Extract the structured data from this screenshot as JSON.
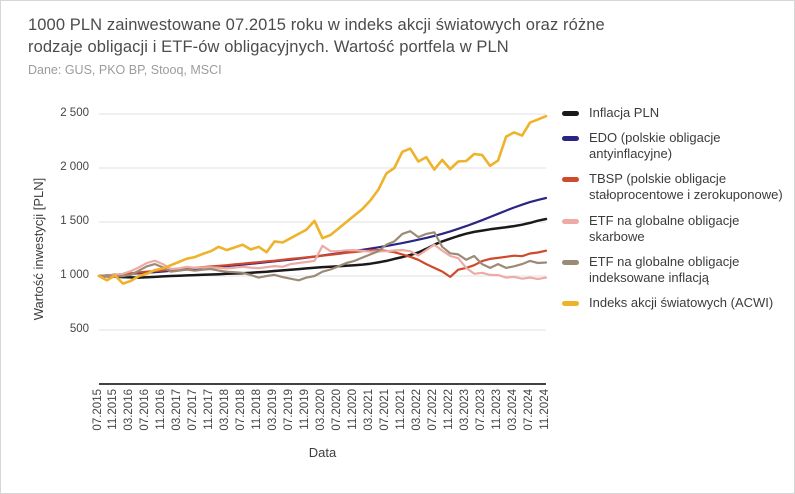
{
  "header": {
    "title_lines": [
      "1000 PLN zainwestowane 07.2015 roku w indeks akcji światowych oraz różne",
      "rodzaje obligacji i ETF-ów obligacyjnych. Wartość portfela w PLN"
    ],
    "source": "Dane: GUS, PKO BP, Stooq, MSCI"
  },
  "chart_data": {
    "type": "line",
    "title": "1000 PLN zainwestowane 07.2015 roku w indeks akcji światowych oraz różne rodzaje obligacji i ETF-ów obligacyjnych. Wartość portfela w PLN",
    "subtitle": "Dane: GUS, PKO BP, Stooq, MSCI",
    "xlabel": "Data",
    "ylabel": "Wartość inwestycji [PLN]",
    "ylim": [
      0,
      2500
    ],
    "ytick_step": 500,
    "ytick_labels": [
      "500",
      "1 000",
      "1 500",
      "2 000",
      "2 500"
    ],
    "grid": "horizontal",
    "legend_position": "right",
    "x_start": "07.2015",
    "x_end": "11.2024",
    "x_sample_interval_months": 2,
    "x_ticks_every_nth_sample": 2,
    "x_tick_labels": [
      "07.2015",
      "11.2015",
      "03.2016",
      "07.2016",
      "11.2016",
      "03.2017",
      "07.2017",
      "11.2017",
      "03.2018",
      "07.2018",
      "11.2018",
      "03.2019",
      "07.2019",
      "11.2019",
      "03.2020",
      "07.2020",
      "11.2020",
      "03.2021",
      "07.2021",
      "11.2021",
      "03.2022",
      "07.2022",
      "11.2022",
      "03.2023",
      "07.2023",
      "11.2023",
      "03.2024",
      "07.2024",
      "11.2024"
    ],
    "series": [
      {
        "name": "Inflacja PLN",
        "color": "#1a1a1a",
        "stroke_width": 2.5,
        "values": [
          1000,
          997,
          994,
          990,
          987,
          985,
          988,
          992,
          996,
          1000,
          1003,
          1006,
          1008,
          1011,
          1014,
          1017,
          1020,
          1023,
          1026,
          1030,
          1035,
          1040,
          1046,
          1052,
          1058,
          1064,
          1070,
          1077,
          1082,
          1086,
          1090,
          1095,
          1100,
          1106,
          1114,
          1126,
          1140,
          1158,
          1175,
          1194,
          1218,
          1252,
          1290,
          1320,
          1345,
          1370,
          1392,
          1408,
          1420,
          1432,
          1443,
          1452,
          1462,
          1475,
          1492,
          1512,
          1528
        ]
      },
      {
        "name": "EDO (polskie obligacje antyinflacyjne)",
        "color": "#2b2583",
        "stroke_width": 2.2,
        "values": [
          1000,
          1005,
          1010,
          1015,
          1020,
          1025,
          1030,
          1036,
          1042,
          1048,
          1054,
          1060,
          1066,
          1072,
          1078,
          1085,
          1092,
          1099,
          1106,
          1113,
          1120,
          1128,
          1136,
          1144,
          1152,
          1161,
          1170,
          1180,
          1190,
          1200,
          1210,
          1221,
          1232,
          1243,
          1254,
          1266,
          1278,
          1291,
          1305,
          1320,
          1336,
          1353,
          1371,
          1391,
          1413,
          1437,
          1462,
          1489,
          1517,
          1546,
          1576,
          1606,
          1634,
          1660,
          1684,
          1705,
          1722
        ]
      },
      {
        "name": "TBSP (polskie obligacje stałoprocentowe i zerokuponowe)",
        "color": "#d0492a",
        "stroke_width": 2.2,
        "values": [
          1000,
          1006,
          1012,
          1018,
          1024,
          1032,
          1040,
          1046,
          1052,
          1058,
          1064,
          1070,
          1076,
          1082,
          1088,
          1094,
          1100,
          1107,
          1114,
          1121,
          1128,
          1135,
          1142,
          1150,
          1158,
          1165,
          1172,
          1180,
          1188,
          1196,
          1205,
          1215,
          1222,
          1230,
          1238,
          1240,
          1232,
          1220,
          1200,
          1178,
          1150,
          1110,
          1075,
          1042,
          992,
          1058,
          1075,
          1100,
          1138,
          1158,
          1168,
          1178,
          1188,
          1183,
          1208,
          1218,
          1234
        ]
      },
      {
        "name": "ETF na globalne obligacje skarbowe",
        "color": "#eeaba5",
        "stroke_width": 2.2,
        "values": [
          1000,
          1002,
          1008,
          1020,
          1045,
          1080,
          1120,
          1142,
          1110,
          1065,
          1070,
          1085,
          1075,
          1080,
          1080,
          1075,
          1070,
          1078,
          1085,
          1078,
          1072,
          1082,
          1092,
          1085,
          1110,
          1120,
          1130,
          1140,
          1280,
          1230,
          1230,
          1238,
          1240,
          1232,
          1225,
          1228,
          1230,
          1236,
          1240,
          1230,
          1190,
          1240,
          1290,
          1235,
          1185,
          1165,
          1075,
          1020,
          1030,
          1010,
          1008,
          985,
          992,
          975,
          985,
          972,
          985
        ]
      },
      {
        "name": "ETF na globalne obligacje indeksowane inflacją",
        "color": "#9b8b76",
        "stroke_width": 2.2,
        "values": [
          1000,
          998,
          995,
          1000,
          1010,
          1050,
          1090,
          1110,
          1080,
          1040,
          1050,
          1060,
          1050,
          1058,
          1065,
          1050,
          1040,
          1035,
          1030,
          1010,
          985,
          1000,
          1010,
          990,
          975,
          960,
          985,
          1000,
          1040,
          1060,
          1090,
          1120,
          1140,
          1170,
          1200,
          1230,
          1290,
          1320,
          1390,
          1415,
          1360,
          1390,
          1405,
          1270,
          1210,
          1200,
          1150,
          1185,
          1110,
          1075,
          1110,
          1075,
          1090,
          1110,
          1140,
          1120,
          1125
        ]
      },
      {
        "name": "Indeks akcji światowych (ACWI)",
        "color": "#eeb22b",
        "stroke_width": 2.6,
        "values": [
          1000,
          960,
          1005,
          930,
          955,
          1000,
          1020,
          1055,
          1070,
          1100,
          1130,
          1160,
          1175,
          1205,
          1230,
          1270,
          1240,
          1265,
          1290,
          1245,
          1270,
          1220,
          1320,
          1310,
          1350,
          1390,
          1430,
          1510,
          1350,
          1380,
          1440,
          1500,
          1560,
          1620,
          1700,
          1800,
          1950,
          2000,
          2150,
          2180,
          2060,
          2100,
          1985,
          2075,
          1990,
          2060,
          2065,
          2130,
          2120,
          2020,
          2070,
          2290,
          2330,
          2300,
          2420,
          2450,
          2480
        ]
      }
    ],
    "colors": {
      "grid": "#e2e2e2",
      "axis_line": "#424242",
      "tick_text": "#454545",
      "title_text": "#4c4c4c",
      "source_text": "#9c9c9c"
    }
  }
}
